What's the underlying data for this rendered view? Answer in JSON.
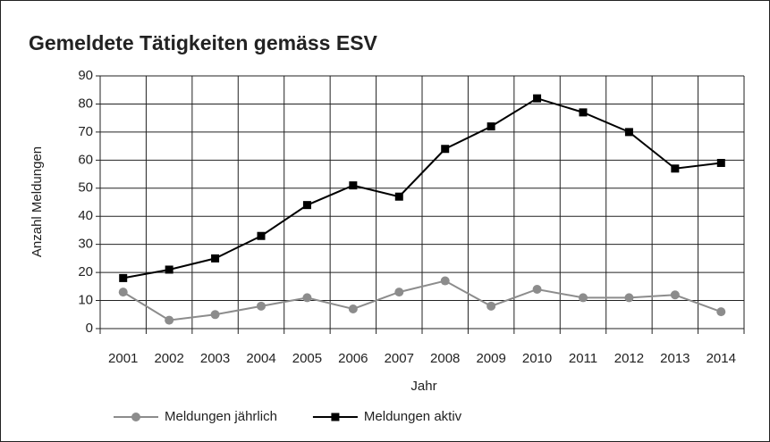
{
  "chart_data": {
    "type": "line",
    "title": "Gemeldete Tätigkeiten gemäss ESV",
    "x_label": "Jahr",
    "y_label": "Anzahl Meldungen",
    "categories": [
      "2001",
      "2002",
      "2003",
      "2004",
      "2005",
      "2006",
      "2007",
      "2008",
      "2009",
      "2010",
      "2011",
      "2012",
      "2013",
      "2014"
    ],
    "series": [
      {
        "name": "Meldungen jährlich",
        "color": "#8c8c8c",
        "marker": "circle",
        "values": [
          13,
          3,
          5,
          8,
          11,
          7,
          13,
          17,
          8,
          14,
          11,
          11,
          12,
          6
        ]
      },
      {
        "name": "Meldungen aktiv",
        "color": "#000000",
        "marker": "square",
        "values": [
          18,
          21,
          25,
          33,
          44,
          51,
          47,
          64,
          72,
          82,
          77,
          70,
          57,
          59
        ]
      }
    ],
    "ylim": [
      0,
      90
    ],
    "yticks": [
      0,
      10,
      20,
      30,
      40,
      50,
      60,
      70,
      80,
      90
    ],
    "grid": true,
    "legend": "bottom"
  }
}
